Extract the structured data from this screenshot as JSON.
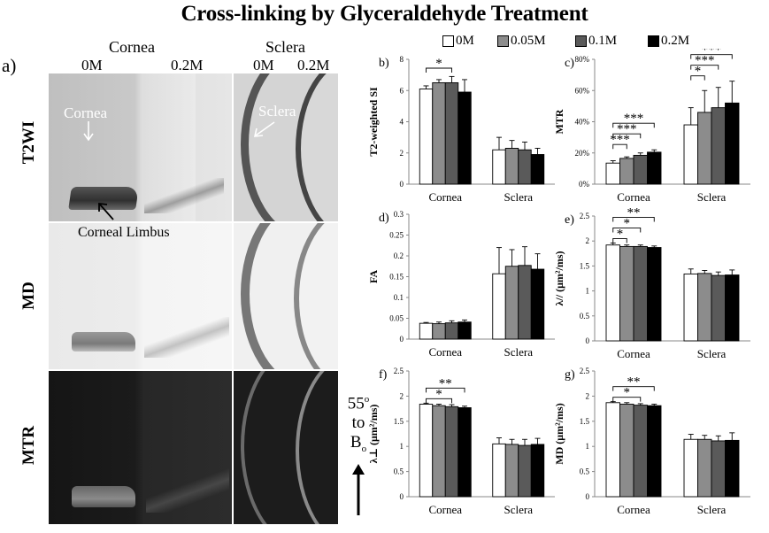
{
  "title": "Cross-linking by Glyceraldehyde Treatment",
  "images": {
    "panel_label": "a)",
    "group_labels": {
      "cornea": "Cornea",
      "sclera": "Sclera"
    },
    "conc_labels": {
      "c1": "0M",
      "c2": "0.2M",
      "s1": "0M",
      "s2": "0.2M"
    },
    "rows": [
      "T2WI",
      "MD",
      "MTR"
    ],
    "annotations": {
      "cornea": "Cornea",
      "sclera": "Sclera",
      "limbus": "Corneal Limbus"
    },
    "orientation": {
      "angle": "55",
      "deg": "o",
      "to": "to",
      "field": "B",
      "field_sub": "o"
    }
  },
  "legend": [
    "0M",
    "0.05M",
    "0.1M",
    "0.2M"
  ],
  "colors": {
    "0M": "#ffffff",
    "0.05M": "#8c8c8c",
    "0.1M": "#5a5a5a",
    "0.2M": "#000000"
  },
  "chart_data": [
    {
      "id": "b",
      "type": "bar",
      "panel": "b)",
      "ylabel": "T2-weighted SI",
      "categories": [
        "Cornea",
        "Sclera"
      ],
      "ylim": [
        0,
        8
      ],
      "yticks": [
        "0",
        "2",
        "4",
        "6",
        "8"
      ],
      "series": [
        {
          "name": "0M",
          "values": [
            6.1,
            2.2
          ],
          "err": [
            0.2,
            0.8
          ]
        },
        {
          "name": "0.05M",
          "values": [
            6.5,
            2.3
          ],
          "err": [
            0.2,
            0.5
          ]
        },
        {
          "name": "0.1M",
          "values": [
            6.5,
            2.2
          ],
          "err": [
            0.4,
            0.5
          ]
        },
        {
          "name": "0.2M",
          "values": [
            5.9,
            1.9
          ],
          "err": [
            0.8,
            0.4
          ]
        }
      ],
      "sig": [
        {
          "a": 0,
          "b": 2,
          "label": "*"
        }
      ]
    },
    {
      "id": "c",
      "type": "bar",
      "panel": "c)",
      "ylabel": "MTR",
      "categories": [
        "Cornea",
        "Sclera"
      ],
      "ylim": [
        0,
        80
      ],
      "yticks": [
        "0%",
        "20%",
        "40%",
        "60%",
        "80%"
      ],
      "series": [
        {
          "name": "0M",
          "values": [
            13.5,
            38
          ],
          "err": [
            1.5,
            11
          ]
        },
        {
          "name": "0.05M",
          "values": [
            16.5,
            46
          ],
          "err": [
            1,
            14
          ]
        },
        {
          "name": "0.1M",
          "values": [
            18.5,
            49
          ],
          "err": [
            1.5,
            13
          ]
        },
        {
          "name": "0.2M",
          "values": [
            20.5,
            52
          ],
          "err": [
            1.5,
            14
          ]
        }
      ],
      "sig": [
        {
          "a": 0,
          "b": 1,
          "label": "***"
        },
        {
          "a": 0,
          "b": 2,
          "label": "***"
        },
        {
          "a": 0,
          "b": 3,
          "label": "***"
        }
      ],
      "sig2": [
        {
          "a": 0,
          "b": 1,
          "label": "*"
        },
        {
          "a": 0,
          "b": 2,
          "label": "***"
        },
        {
          "a": 0,
          "b": 3,
          "label": "***"
        }
      ]
    },
    {
      "id": "d",
      "type": "bar",
      "panel": "d)",
      "ylabel": "FA",
      "categories": [
        "Cornea",
        "Sclera"
      ],
      "ylim": [
        0,
        0.3
      ],
      "yticks": [
        "0",
        "0.05",
        "0.1",
        "0.15",
        "0.2",
        "0.25",
        "0.3"
      ],
      "series": [
        {
          "name": "0M",
          "values": [
            0.038,
            0.157
          ],
          "err": [
            0.002,
            0.063
          ]
        },
        {
          "name": "0.05M",
          "values": [
            0.037,
            0.175
          ],
          "err": [
            0.004,
            0.04
          ]
        },
        {
          "name": "0.1M",
          "values": [
            0.039,
            0.177
          ],
          "err": [
            0.005,
            0.045
          ]
        },
        {
          "name": "0.2M",
          "values": [
            0.041,
            0.168
          ],
          "err": [
            0.005,
            0.037
          ]
        }
      ],
      "sig": []
    },
    {
      "id": "e",
      "type": "bar",
      "panel": "e)",
      "ylabel": "λ// (μm²/ms)",
      "categories": [
        "Cornea",
        "Sclera"
      ],
      "ylim": [
        0,
        2.5
      ],
      "yticks": [
        "0",
        "0.5",
        "1",
        "1.5",
        "2",
        "2.5"
      ],
      "series": [
        {
          "name": "0M",
          "values": [
            1.92,
            1.34
          ],
          "err": [
            0.04,
            0.1
          ]
        },
        {
          "name": "0.05M",
          "values": [
            1.89,
            1.35
          ],
          "err": [
            0.03,
            0.06
          ]
        },
        {
          "name": "0.1M",
          "values": [
            1.89,
            1.31
          ],
          "err": [
            0.03,
            0.07
          ]
        },
        {
          "name": "0.2M",
          "values": [
            1.87,
            1.32
          ],
          "err": [
            0.03,
            0.1
          ]
        }
      ],
      "sig": [
        {
          "a": 0,
          "b": 1,
          "label": "*"
        },
        {
          "a": 0,
          "b": 2,
          "label": "*"
        },
        {
          "a": 0,
          "b": 3,
          "label": "**"
        }
      ]
    },
    {
      "id": "f",
      "type": "bar",
      "panel": "f)",
      "ylabel": "λ⊥ (μm²/ms)",
      "categories": [
        "Cornea",
        "Sclera"
      ],
      "ylim": [
        0,
        2.5
      ],
      "yticks": [
        "0",
        "0.5",
        "1",
        "1.5",
        "2",
        "2.5"
      ],
      "series": [
        {
          "name": "0M",
          "values": [
            1.84,
            1.05
          ],
          "err": [
            0.02,
            0.12
          ]
        },
        {
          "name": "0.05M",
          "values": [
            1.81,
            1.04
          ],
          "err": [
            0.03,
            0.1
          ]
        },
        {
          "name": "0.1M",
          "values": [
            1.79,
            1.02
          ],
          "err": [
            0.04,
            0.12
          ]
        },
        {
          "name": "0.2M",
          "values": [
            1.77,
            1.04
          ],
          "err": [
            0.03,
            0.12
          ]
        }
      ],
      "sig": [
        {
          "a": 0,
          "b": 2,
          "label": "*"
        },
        {
          "a": 0,
          "b": 3,
          "label": "**"
        }
      ]
    },
    {
      "id": "g",
      "type": "bar",
      "panel": "g)",
      "ylabel": "MD (μm²/ms)",
      "categories": [
        "Cornea",
        "Sclera"
      ],
      "ylim": [
        0,
        2.5
      ],
      "yticks": [
        "0",
        "0.5",
        "1",
        "1.5",
        "2",
        "2.5"
      ],
      "series": [
        {
          "name": "0M",
          "values": [
            1.87,
            1.14
          ],
          "err": [
            0.02,
            0.1
          ]
        },
        {
          "name": "0.05M",
          "values": [
            1.84,
            1.14
          ],
          "err": [
            0.03,
            0.08
          ]
        },
        {
          "name": "0.1M",
          "values": [
            1.82,
            1.11
          ],
          "err": [
            0.03,
            0.1
          ]
        },
        {
          "name": "0.2M",
          "values": [
            1.81,
            1.12
          ],
          "err": [
            0.03,
            0.15
          ]
        }
      ],
      "sig": [
        {
          "a": 0,
          "b": 2,
          "label": "*"
        },
        {
          "a": 0,
          "b": 3,
          "label": "**"
        }
      ]
    }
  ]
}
